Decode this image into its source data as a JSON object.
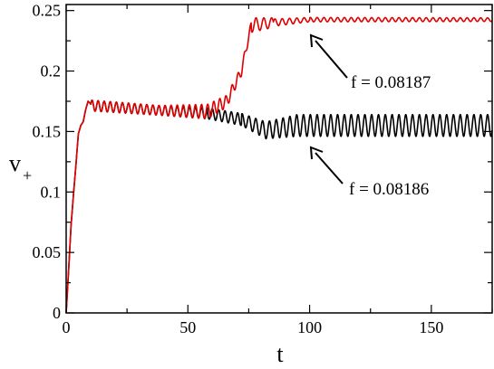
{
  "chart_data": {
    "type": "line",
    "xlabel": "t",
    "ylabel_main": "v",
    "ylabel_sub": "+",
    "xlim": [
      0,
      175
    ],
    "ylim": [
      0,
      0.255
    ],
    "xticks": [
      0,
      50,
      100,
      150
    ],
    "xtick_labels": [
      "0",
      "50",
      "100",
      "150"
    ],
    "yticks": [
      0,
      0.05,
      0.1,
      0.15,
      0.2,
      0.25
    ],
    "ytick_labels": [
      "0",
      "0.05",
      "0.1",
      "0.15",
      "0.2",
      "0.25"
    ],
    "grid": false,
    "legend": "none",
    "series": [
      {
        "color": "#000000",
        "label": "f = 0.08186",
        "ramp": [
          [
            0,
            0
          ],
          [
            1,
            0.035
          ],
          [
            2,
            0.072
          ],
          [
            3,
            0.098
          ],
          [
            4,
            0.122
          ],
          [
            5,
            0.148
          ],
          [
            6,
            0.155
          ],
          [
            7,
            0.158
          ],
          [
            8,
            0.168
          ],
          [
            9,
            0.175
          ],
          [
            10,
            0.173
          ]
        ],
        "segments": [
          {
            "t0": 10,
            "t1": 38,
            "mean": [
              0.1715,
              0.1675
            ],
            "amp": [
              0.0045,
              0.004
            ],
            "period": 2.5
          },
          {
            "t0": 38,
            "t1": 58,
            "mean": [
              0.1675,
              0.165
            ],
            "amp": [
              0.004,
              0.0045
            ],
            "period": 2.5
          },
          {
            "t0": 58,
            "t1": 72,
            "mean": [
              0.165,
              0.16
            ],
            "amp": [
              0.0045,
              0.005
            ],
            "period": 2.6
          },
          {
            "t0": 72,
            "t1": 82,
            "mean": [
              0.16,
              0.151
            ],
            "amp": [
              0.005,
              0.007
            ],
            "period": 2.8
          },
          {
            "t0": 82,
            "t1": 95,
            "mean": [
              0.151,
              0.155
            ],
            "amp": [
              0.007,
              0.009
            ],
            "period": 2.8
          },
          {
            "t0": 95,
            "t1": 175,
            "mean": [
              0.155,
              0.155
            ],
            "amp": [
              0.009,
              0.009
            ],
            "period": 2.8
          }
        ]
      },
      {
        "color": "#e00000",
        "label": "f = 0.08187",
        "ramp": [
          [
            0,
            0
          ],
          [
            1,
            0.035
          ],
          [
            2,
            0.072
          ],
          [
            3,
            0.098
          ],
          [
            4,
            0.122
          ],
          [
            5,
            0.148
          ],
          [
            6,
            0.155
          ],
          [
            7,
            0.158
          ],
          [
            8,
            0.168
          ],
          [
            9,
            0.175
          ],
          [
            10,
            0.173
          ]
        ],
        "segments": [
          {
            "t0": 10,
            "t1": 38,
            "mean": [
              0.1715,
              0.1675
            ],
            "amp": [
              0.0045,
              0.004
            ],
            "period": 2.5
          },
          {
            "t0": 38,
            "t1": 58,
            "mean": [
              0.1675,
              0.1665
            ],
            "amp": [
              0.004,
              0.006
            ],
            "period": 2.5
          },
          {
            "t0": 58,
            "t1": 66,
            "mean": [
              0.1665,
              0.175
            ],
            "amp": [
              0.006,
              0.005
            ],
            "period": 2.5
          },
          {
            "t0": 66,
            "t1": 72,
            "mean": [
              0.175,
              0.2
            ],
            "amp": [
              0.005,
              0.004
            ],
            "period": 2.5
          },
          {
            "t0": 72,
            "t1": 76,
            "mean": [
              0.2,
              0.238
            ],
            "amp": [
              0.004,
              0.003
            ],
            "period": 2.5
          },
          {
            "t0": 76,
            "t1": 85,
            "mean": [
              0.238,
              0.24
            ],
            "amp": [
              0.006,
              0.004
            ],
            "period": 3.2
          },
          {
            "t0": 85,
            "t1": 100,
            "mean": [
              0.24,
              0.2425
            ],
            "amp": [
              0.003,
              0.0018
            ],
            "period": 3.0
          },
          {
            "t0": 100,
            "t1": 175,
            "mean": [
              0.2425,
              0.2425
            ],
            "amp": [
              0.0018,
              0.0015
            ],
            "period": 2.8
          }
        ]
      }
    ],
    "annotations": [
      {
        "text": "f = 0.08187",
        "arrow_to": [
          100,
          0.2435
        ]
      },
      {
        "text": "f = 0.08186",
        "arrow_to": [
          100,
          0.141
        ]
      }
    ]
  }
}
